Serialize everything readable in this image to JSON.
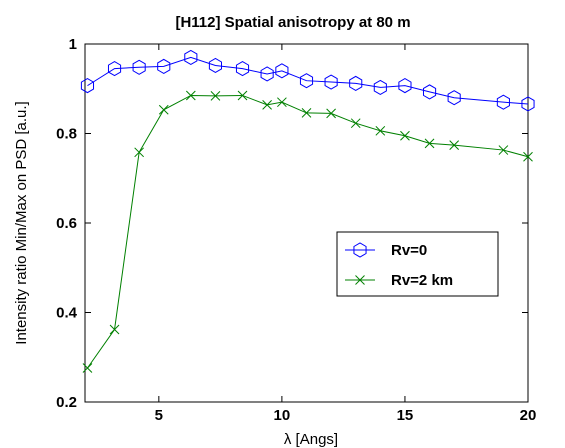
{
  "chart_data": {
    "type": "line",
    "title": "[H112] Spatial anisotropy at 80 m",
    "xlabel": "λ [Angs]",
    "ylabel": "Intensity ratio Min/Max on PSD [a.u.]",
    "xlim": [
      2,
      20
    ],
    "ylim": [
      0.2,
      1.0
    ],
    "x_ticks": [
      "5",
      "10",
      "15",
      "20"
    ],
    "y_ticks": [
      "0.2",
      "0.4",
      "0.6",
      "0.8",
      "1"
    ],
    "grid": false,
    "legend_position": "right",
    "series": [
      {
        "name": "Rv=0",
        "color": "#0000ff",
        "marker": "hexagon",
        "x": [
          2.1,
          3.2,
          4.2,
          5.2,
          6.3,
          7.3,
          8.4,
          9.4,
          10.0,
          11.0,
          12.0,
          13.0,
          14.0,
          15.0,
          16.0,
          17.0,
          19.0,
          20.0
        ],
        "y": [
          0.907,
          0.945,
          0.948,
          0.95,
          0.97,
          0.952,
          0.945,
          0.933,
          0.94,
          0.918,
          0.915,
          0.912,
          0.903,
          0.907,
          0.893,
          0.88,
          0.87,
          0.866
        ]
      },
      {
        "name": "Rv=2 km",
        "color": "#008000",
        "marker": "x",
        "x": [
          2.1,
          3.2,
          4.2,
          5.2,
          6.3,
          7.3,
          8.4,
          9.4,
          10.0,
          11.0,
          12.0,
          13.0,
          14.0,
          15.0,
          16.0,
          17.0,
          19.0,
          20.0
        ],
        "y": [
          0.276,
          0.362,
          0.758,
          0.853,
          0.885,
          0.884,
          0.885,
          0.864,
          0.87,
          0.846,
          0.845,
          0.823,
          0.806,
          0.795,
          0.778,
          0.774,
          0.763,
          0.748
        ]
      }
    ]
  }
}
